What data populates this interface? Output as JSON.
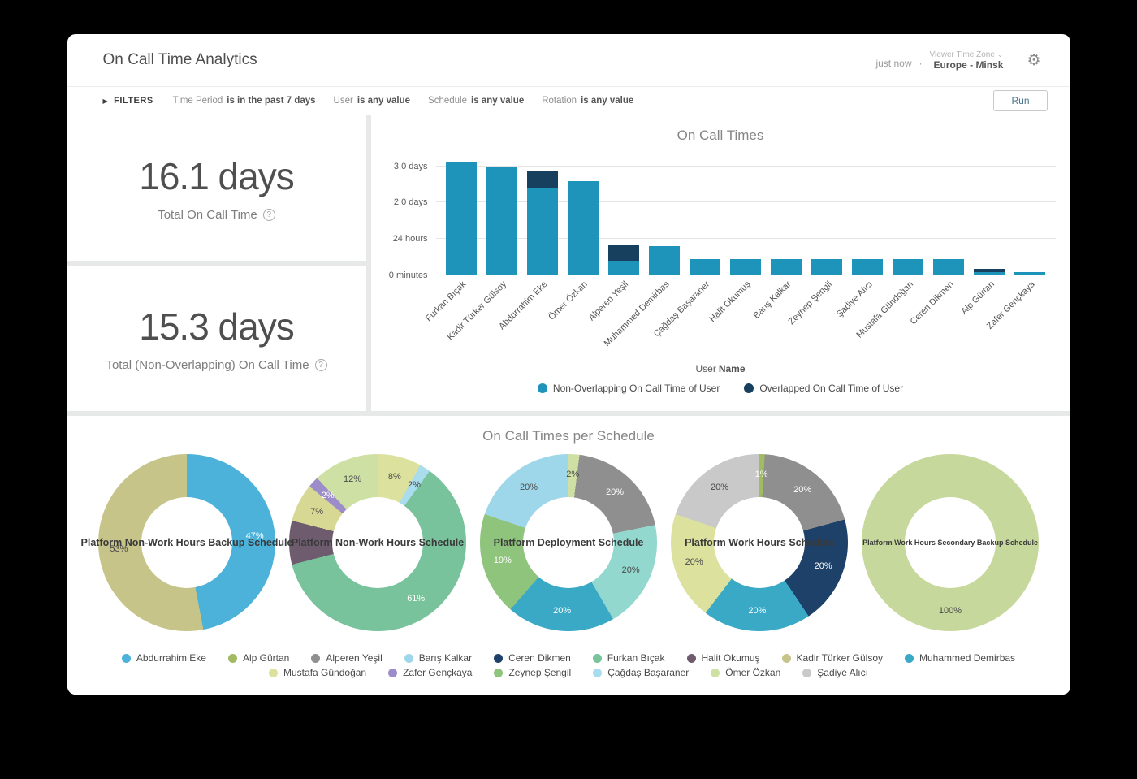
{
  "header": {
    "title": "On Call Time Analytics",
    "updated": "just now",
    "separator": "·",
    "timezone_label": "Viewer Time Zone",
    "timezone_value": "Europe - Minsk"
  },
  "icons": {
    "gear": "⚙",
    "caret_down": "⌄",
    "filters_caret": "▶",
    "help": "?"
  },
  "filters": {
    "toggle_label": "FILTERS",
    "items": [
      {
        "label": "Time Period",
        "value": "is in the past 7 days"
      },
      {
        "label": "User",
        "value": "is any value"
      },
      {
        "label": "Schedule",
        "value": "is any value"
      },
      {
        "label": "Rotation",
        "value": "is any value"
      }
    ],
    "run_label": "Run"
  },
  "stats": [
    {
      "value": "16.1 days",
      "label": "Total On Call Time"
    },
    {
      "value": "15.3 days",
      "label": "Total (Non-Overlapping) On Call Time"
    }
  ],
  "chart_data": [
    {
      "type": "bar",
      "title": "On Call Times",
      "x_axis_title": "User Name",
      "x_title_normal": "User",
      "x_title_bold": "Name",
      "y_max": 3.35,
      "y_ticks": [
        {
          "value": 3,
          "label": "3.0 days"
        },
        {
          "value": 2,
          "label": "2.0 days"
        },
        {
          "value": 1,
          "label": "24 hours"
        },
        {
          "value": 0,
          "label": "0 minutes"
        }
      ],
      "colors": {
        "non_overlapping": "#1e94ba",
        "overlapped": "#16405e"
      },
      "legend": [
        {
          "label": "Non-Overlapping On Call Time of User",
          "color": "#1e94ba"
        },
        {
          "label": "Overlapped On Call Time of User",
          "color": "#16405e"
        }
      ],
      "bars": [
        {
          "name": "Furkan Bıçak",
          "non_overlapping": 3.1,
          "overlapped": 0
        },
        {
          "name": "Kadir Türker Gülsoy",
          "non_overlapping": 3.0,
          "overlapped": 0
        },
        {
          "name": "Abdurrahim Eke",
          "non_overlapping": 2.4,
          "overlapped": 0.45
        },
        {
          "name": "Ömer Özkan",
          "non_overlapping": 2.6,
          "overlapped": 0
        },
        {
          "name": "Alperen Yeşil",
          "non_overlapping": 0.4,
          "overlapped": 0.45
        },
        {
          "name": "Muhammed Demirbas",
          "non_overlapping": 0.8,
          "overlapped": 0
        },
        {
          "name": "Çağdaş Başaraner",
          "non_overlapping": 0.45,
          "overlapped": 0
        },
        {
          "name": "Halit Okumuş",
          "non_overlapping": 0.45,
          "overlapped": 0
        },
        {
          "name": "Barış Kalkar",
          "non_overlapping": 0.45,
          "overlapped": 0
        },
        {
          "name": "Zeynep Şengil",
          "non_overlapping": 0.45,
          "overlapped": 0
        },
        {
          "name": "Şadiye Alıcı",
          "non_overlapping": 0.45,
          "overlapped": 0
        },
        {
          "name": "Mustafa Gündoğan",
          "non_overlapping": 0.45,
          "overlapped": 0
        },
        {
          "name": "Ceren Dikmen",
          "non_overlapping": 0.45,
          "overlapped": 0
        },
        {
          "name": "Alp Gürtan",
          "non_overlapping": 0.1,
          "overlapped": 0.07
        },
        {
          "name": "Zafer Gençkaya",
          "non_overlapping": 0.08,
          "overlapped": 0
        }
      ]
    },
    {
      "type": "pie",
      "title": "On Call Times per Schedule",
      "donuts": [
        {
          "title": "Platform Non-Work Hours Backup Schedule",
          "slices": [
            {
              "name": "Abdurrahim Eke",
              "pct": 47,
              "color": "#4cb2d9",
              "label": "47%"
            },
            {
              "name": "Kadir Türker Gülsoy",
              "pct": 53,
              "color": "#c6c489",
              "label": "53%"
            }
          ]
        },
        {
          "title": "Platform Non-Work Hours Schedule",
          "slices": [
            {
              "name": "Mustafa Gündoğan",
              "pct": 8,
              "color": "#dce29e",
              "label": "8%"
            },
            {
              "name": "Çağdaş Başaraner",
              "pct": 2,
              "color": "#a9dcec",
              "label": "2%"
            },
            {
              "name": "Furkan Bıçak",
              "pct": 61,
              "color": "#79c39c",
              "label": "61%"
            },
            {
              "name": "Halit Okumuş",
              "pct": 8,
              "color": "#6e5b6e",
              "label": ""
            },
            {
              "name": "Kadir Türker Gülsoy",
              "pct": 7,
              "color": "#d6d893",
              "label": "7%"
            },
            {
              "name": "Zafer Gençkaya",
              "pct": 2,
              "color": "#9c8cc9",
              "label": "2%"
            },
            {
              "name": "Ömer Özkan",
              "pct": 12,
              "color": "#cfe0a5",
              "label": "12%"
            }
          ]
        },
        {
          "title": "Platform Deployment Schedule",
          "slices": [
            {
              "name": "Ömer Özkan",
              "pct": 2,
              "color": "#cfe0a5",
              "label": "2%"
            },
            {
              "name": "Alperen Yeşil",
              "pct": 20,
              "color": "#8f8f8f",
              "label": "20%"
            },
            {
              "name": "Çağdaş Başaraner",
              "pct": 20,
              "color": "#93d8cf",
              "label": "20%"
            },
            {
              "name": "Muhammed Demirbas",
              "pct": 20,
              "color": "#3aa9c6",
              "label": "20%"
            },
            {
              "name": "Zeynep Şengil",
              "pct": 19,
              "color": "#8fc47c",
              "label": "19%"
            },
            {
              "name": "Barış Kalkar",
              "pct": 20,
              "color": "#9ed7ea",
              "label": "20%"
            }
          ]
        },
        {
          "title": "Platform Work Hours Schedule",
          "slices": [
            {
              "name": "Alp Gürtan",
              "pct": 1,
              "color": "#a2ba62",
              "label": "1%"
            },
            {
              "name": "Alperen Yeşil",
              "pct": 20,
              "color": "#8f8f8f",
              "label": "20%"
            },
            {
              "name": "Ceren Dikmen",
              "pct": 20,
              "color": "#1d4168",
              "label": "20%"
            },
            {
              "name": "Muhammed Demirbas",
              "pct": 20,
              "color": "#3aa9c6",
              "label": "20%"
            },
            {
              "name": "Mustafa Gündoğan",
              "pct": 20,
              "color": "#dce29e",
              "label": "20%"
            },
            {
              "name": "Şadiye Alıcı",
              "pct": 20,
              "color": "#c9c9c9",
              "label": "20%"
            }
          ]
        },
        {
          "title": "Platform Work Hours Secondary Backup Schedule",
          "slices": [
            {
              "name": "Ömer Özkan",
              "pct": 100,
              "color": "#c7d89c",
              "label": "100%"
            }
          ]
        }
      ]
    }
  ],
  "user_legend": {
    "rows": [
      [
        {
          "name": "Abdurrahim Eke",
          "color": "#4cb2d9"
        },
        {
          "name": "Alp Gürtan",
          "color": "#a2ba62"
        },
        {
          "name": "Alperen Yeşil",
          "color": "#8f8f8f"
        },
        {
          "name": "Barış Kalkar",
          "color": "#9ed7ea"
        },
        {
          "name": "Ceren Dikmen",
          "color": "#1d4168"
        },
        {
          "name": "Furkan Bıçak",
          "color": "#79c39c"
        },
        {
          "name": "Halit Okumuş",
          "color": "#6e5b6e"
        },
        {
          "name": "Kadir Türker Gülsoy",
          "color": "#c6c489"
        },
        {
          "name": "Muhammed Demirbas",
          "color": "#3aa9c6"
        }
      ],
      [
        {
          "name": "Mustafa Gündoğan",
          "color": "#dce29e"
        },
        {
          "name": "Zafer Gençkaya",
          "color": "#9c8cc9"
        },
        {
          "name": "Zeynep Şengil",
          "color": "#8fc47c"
        },
        {
          "name": "Çağdaş Başaraner",
          "color": "#a9dcec"
        },
        {
          "name": "Ömer Özkan",
          "color": "#cfe0a5"
        },
        {
          "name": "Şadiye Alıcı",
          "color": "#c9c9c9"
        }
      ]
    ]
  }
}
